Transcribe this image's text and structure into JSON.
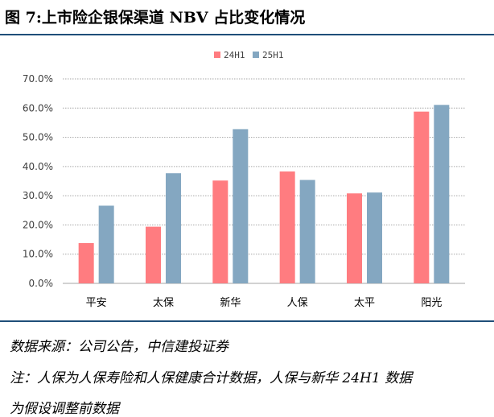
{
  "figure": {
    "title": "图 7:上市险企银保渠道 NBV 占比变化情况"
  },
  "chart_data": {
    "type": "bar",
    "categories": [
      "平安",
      "太保",
      "新华",
      "人保",
      "太平",
      "阳光"
    ],
    "series": [
      {
        "name": "24H1",
        "values": [
          13.8,
          19.4,
          35.2,
          38.3,
          30.8,
          58.8
        ],
        "color": "#ff7c80"
      },
      {
        "name": "25H1",
        "values": [
          26.6,
          37.7,
          52.8,
          35.4,
          31.1,
          61.1
        ],
        "color": "#84a7c1"
      }
    ],
    "ylim": [
      0,
      70
    ],
    "yticks": [
      "0.0%",
      "10.0%",
      "20.0%",
      "30.0%",
      "40.0%",
      "50.0%",
      "60.0%",
      "70.0%"
    ],
    "grid": true,
    "legend_position": "top"
  },
  "notes": {
    "source": "数据来源：公司公告，中信建投证券",
    "note_line1": "注：人保为人保寿险和人保健康合计数据，人保与新华 24H1 数据",
    "note_line2": "为假设调整前数据"
  }
}
